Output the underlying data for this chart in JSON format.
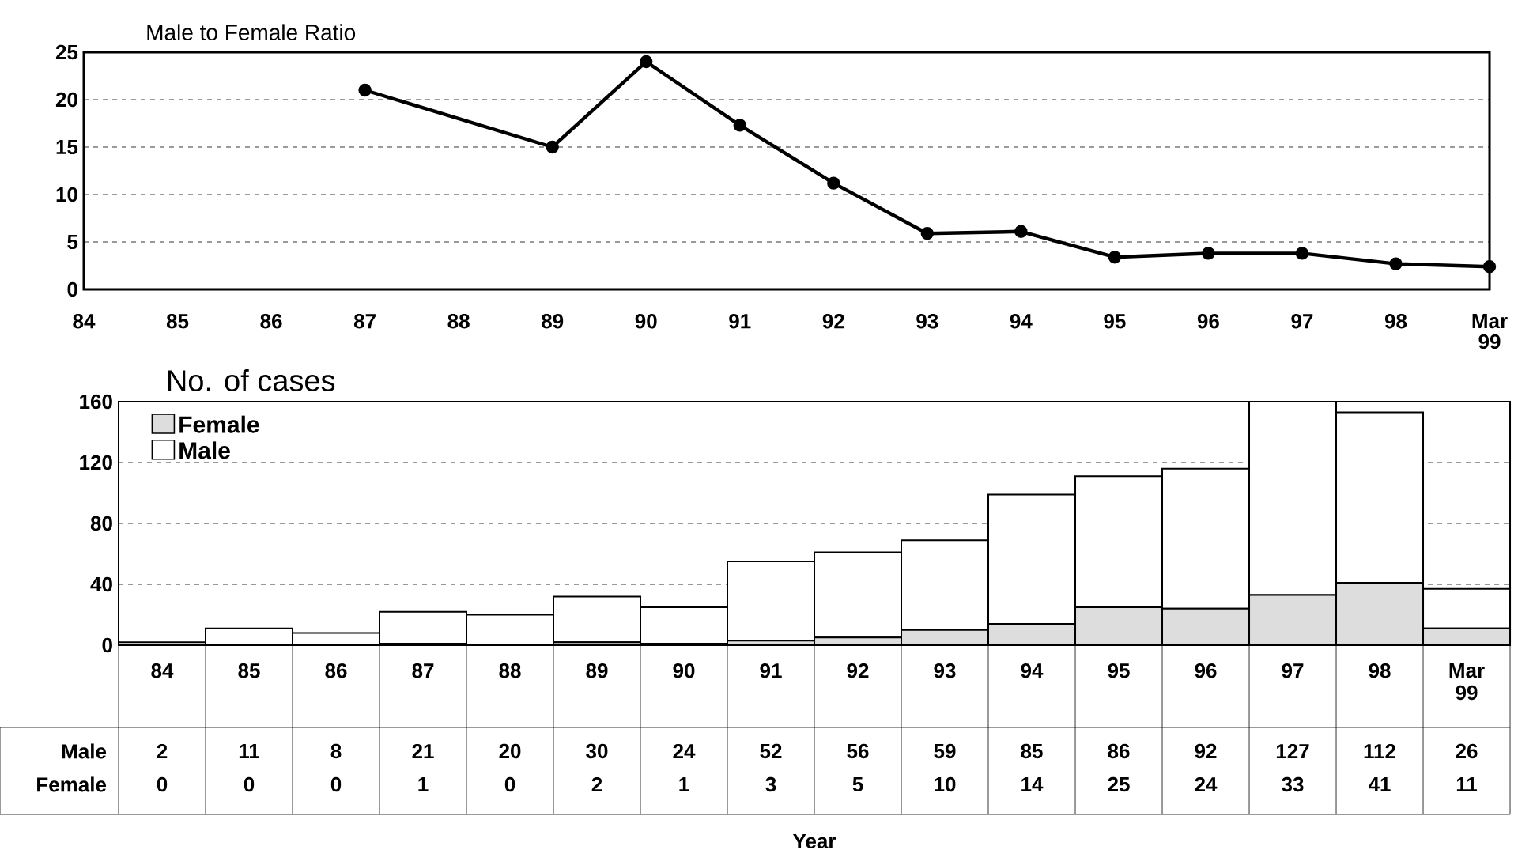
{
  "chart_data": [
    {
      "type": "line",
      "title": "Male to Female Ratio",
      "categories": [
        "84",
        "85",
        "86",
        "87",
        "88",
        "89",
        "90",
        "91",
        "92",
        "93",
        "94",
        "95",
        "96",
        "97",
        "98",
        "Mar 99"
      ],
      "series": [
        {
          "color": "#000000",
          "values": [
            null,
            null,
            null,
            21,
            null,
            15,
            24,
            17.3,
            11.2,
            5.9,
            6.1,
            3.4,
            3.8,
            3.8,
            2.7,
            2.4
          ]
        }
      ],
      "ylim": [
        0,
        25
      ],
      "yticks": [
        0,
        5,
        10,
        15,
        20,
        25
      ],
      "grid": "y",
      "marker": "circle",
      "line_style": "solid",
      "legend": false
    },
    {
      "type": "bar",
      "title": "No. of cases",
      "xlabel": "Year",
      "stacked": true,
      "categories": [
        "84",
        "85",
        "86",
        "87",
        "88",
        "89",
        "90",
        "91",
        "92",
        "93",
        "94",
        "95",
        "96",
        "97",
        "98",
        "Mar 99"
      ],
      "series": [
        {
          "name": "Female",
          "color": "#dddddd",
          "values": [
            0,
            0,
            0,
            1,
            0,
            2,
            1,
            3,
            5,
            10,
            14,
            25,
            24,
            33,
            41,
            11
          ]
        },
        {
          "name": "Male",
          "color": "#ffffff",
          "values": [
            2,
            11,
            8,
            21,
            20,
            30,
            24,
            52,
            56,
            59,
            85,
            86,
            92,
            127,
            112,
            26
          ]
        }
      ],
      "ylim": [
        0,
        160
      ],
      "yticks": [
        0,
        40,
        80,
        120,
        160
      ],
      "grid": "y",
      "legend": "top left",
      "data_labels": true
    }
  ]
}
